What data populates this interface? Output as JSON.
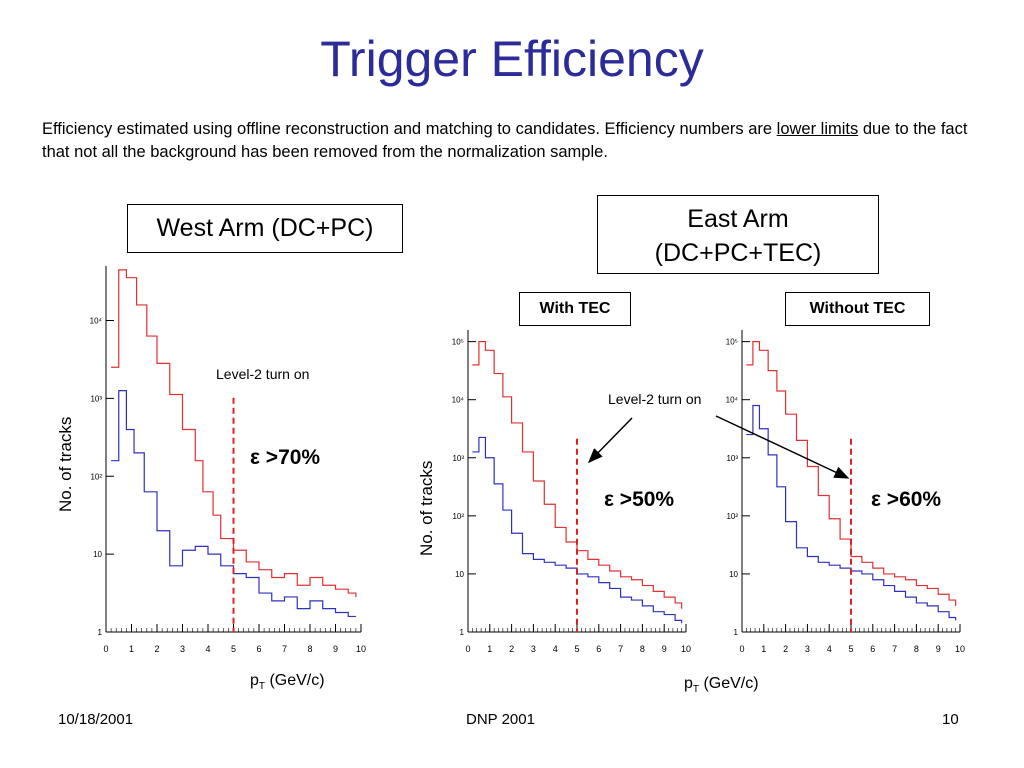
{
  "slide": {
    "title": "Trigger Efficiency",
    "desc_part1": "Efficiency estimated using offline reconstruction and matching to candidates. Efficiency numbers are ",
    "desc_underline": "lower limits",
    "desc_part2": " due to the fact that not all the background has been removed from the normalization sample.",
    "west_box": "West Arm (DC+PC)",
    "east_box_line1": "East Arm",
    "east_box_line2": "(DC+PC+TEC)",
    "with_tec": "With TEC",
    "without_tec": "Without TEC",
    "west_turnon": "Level-2 turn on",
    "east_turnon": "Level-2 turn on",
    "west_eff": "ε >70%",
    "with_eff": "ε >50%",
    "without_eff": "ε >60%",
    "ylabel_west": "No. of tracks",
    "ylabel_east": "No. of tracks",
    "xlabel_p": "p",
    "xlabel_sub": "T",
    "xlabel_unit": " (GeV/c)",
    "footer_date": "10/18/2001",
    "footer_center": "DNP 2001",
    "footer_page": "10"
  },
  "chart_data": [
    {
      "type": "line",
      "panel": "West Arm (DC+PC)",
      "x_ticks": [
        "0",
        "1",
        "2",
        "3",
        "4",
        "5",
        "6",
        "7",
        "8",
        "9",
        "10"
      ],
      "y_ticks": [
        "1",
        "10",
        "10²",
        "10³",
        "10⁴"
      ],
      "xlim": [
        0,
        10
      ],
      "ylog_decades": [
        0,
        4.7
      ],
      "turn_on_x": 5.0,
      "series": [
        {
          "color": "#e03030",
          "x": [
            0.2,
            0.5,
            0.8,
            1.2,
            1.6,
            2.0,
            2.5,
            3.0,
            3.5,
            3.8,
            4.2,
            4.5,
            5.0,
            5.5,
            6.0,
            6.5,
            7.0,
            7.5,
            8.0,
            8.5,
            9.0,
            9.5,
            9.8
          ],
          "y": [
            3.4,
            4.65,
            4.55,
            4.2,
            3.8,
            3.45,
            3.05,
            2.6,
            2.2,
            1.8,
            1.5,
            1.2,
            1.05,
            0.9,
            0.8,
            0.7,
            0.75,
            0.6,
            0.7,
            0.6,
            0.55,
            0.5,
            0.45
          ]
        },
        {
          "color": "#3030c0",
          "x": [
            0.2,
            0.5,
            0.8,
            1.1,
            1.5,
            2.0,
            2.5,
            3.0,
            3.5,
            4.0,
            4.5,
            5.0,
            5.5,
            6.0,
            6.5,
            7.0,
            7.5,
            8.0,
            8.5,
            9.0,
            9.5,
            9.8
          ],
          "y": [
            2.2,
            3.1,
            2.6,
            2.3,
            1.8,
            1.3,
            0.85,
            1.05,
            1.1,
            1.0,
            0.85,
            0.75,
            0.7,
            0.5,
            0.4,
            0.45,
            0.3,
            0.4,
            0.3,
            0.25,
            0.2,
            0.2
          ]
        }
      ]
    },
    {
      "type": "line",
      "panel": "With TEC",
      "x_ticks": [
        "0",
        "1",
        "2",
        "3",
        "4",
        "5",
        "6",
        "7",
        "8",
        "9",
        "10"
      ],
      "y_ticks": [
        "1",
        "10",
        "10²",
        "10³",
        "10⁴",
        "10⁵"
      ],
      "xlim": [
        0,
        10
      ],
      "ylog_decades": [
        0,
        5.2
      ],
      "turn_on_x": 5.0,
      "series": [
        {
          "color": "#e03030",
          "x": [
            0.2,
            0.5,
            0.8,
            1.2,
            1.6,
            2.0,
            2.5,
            3.0,
            3.5,
            4.0,
            4.5,
            5.0,
            5.5,
            6.0,
            6.5,
            7.0,
            7.5,
            8.0,
            8.5,
            9.0,
            9.5,
            9.8
          ],
          "y": [
            4.6,
            5.0,
            4.85,
            4.45,
            4.05,
            3.6,
            3.1,
            2.6,
            2.2,
            1.8,
            1.55,
            1.4,
            1.25,
            1.15,
            1.05,
            0.95,
            0.9,
            0.8,
            0.7,
            0.6,
            0.5,
            0.4
          ]
        },
        {
          "color": "#3030c0",
          "x": [
            0.2,
            0.5,
            0.8,
            1.2,
            1.6,
            2.0,
            2.5,
            3.0,
            3.5,
            4.0,
            4.5,
            5.0,
            5.5,
            6.0,
            6.5,
            7.0,
            7.5,
            8.0,
            8.5,
            9.0,
            9.5,
            9.8
          ],
          "y": [
            3.1,
            3.35,
            3.0,
            2.55,
            2.1,
            1.7,
            1.35,
            1.25,
            1.2,
            1.15,
            1.1,
            1.0,
            0.95,
            0.85,
            0.75,
            0.6,
            0.55,
            0.45,
            0.35,
            0.3,
            0.2,
            0.15
          ]
        }
      ]
    },
    {
      "type": "line",
      "panel": "Without TEC",
      "x_ticks": [
        "0",
        "1",
        "2",
        "3",
        "4",
        "5",
        "6",
        "7",
        "8",
        "9",
        "10"
      ],
      "y_ticks": [
        "1",
        "10",
        "10²",
        "10³",
        "10⁴",
        "10⁵"
      ],
      "xlim": [
        0,
        10
      ],
      "ylog_decades": [
        0,
        5.2
      ],
      "turn_on_x": 5.0,
      "series": [
        {
          "color": "#e03030",
          "x": [
            0.2,
            0.5,
            0.8,
            1.2,
            1.6,
            2.0,
            2.5,
            3.0,
            3.5,
            4.0,
            4.5,
            5.0,
            5.5,
            6.0,
            6.5,
            7.0,
            7.5,
            8.0,
            8.5,
            9.0,
            9.5,
            9.8
          ],
          "y": [
            4.6,
            5.0,
            4.85,
            4.5,
            4.15,
            3.75,
            3.3,
            2.85,
            2.35,
            1.95,
            1.6,
            1.3,
            1.2,
            1.1,
            1.0,
            0.95,
            0.9,
            0.8,
            0.75,
            0.65,
            0.55,
            0.45
          ]
        },
        {
          "color": "#3030c0",
          "x": [
            0.2,
            0.5,
            0.8,
            1.2,
            1.6,
            2.0,
            2.5,
            3.0,
            3.5,
            4.0,
            4.5,
            5.0,
            5.5,
            6.0,
            6.5,
            7.0,
            7.5,
            8.0,
            8.5,
            9.0,
            9.5,
            9.8
          ],
          "y": [
            3.4,
            3.9,
            3.5,
            3.05,
            2.5,
            1.9,
            1.45,
            1.3,
            1.2,
            1.15,
            1.1,
            1.05,
            1.0,
            0.9,
            0.8,
            0.7,
            0.6,
            0.5,
            0.45,
            0.35,
            0.25,
            0.2
          ]
        }
      ]
    }
  ]
}
